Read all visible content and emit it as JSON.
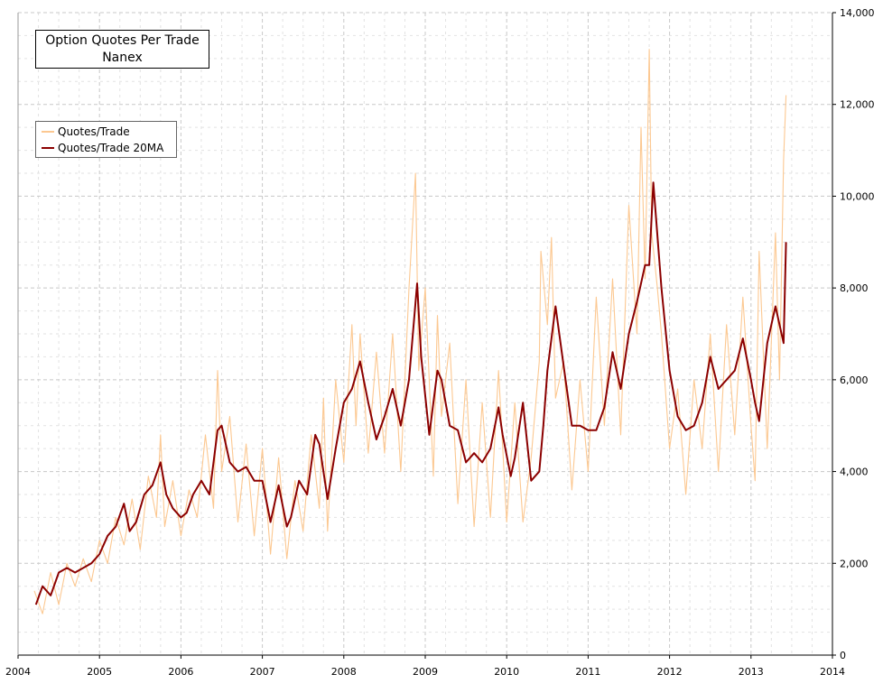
{
  "title_line1": "Option Quotes Per Trade",
  "title_line2": "Nanex",
  "colors": {
    "raw": "#fcc891",
    "ma": "#8b0000",
    "grid": "#c8c8c8",
    "background": "#ffffff"
  },
  "legend": {
    "placement": "top-left",
    "items": [
      {
        "label": "Quotes/Trade",
        "color": "#fcc891"
      },
      {
        "label": "Quotes/Trade 20MA",
        "color": "#8b0000"
      }
    ]
  },
  "chart_data": {
    "type": "line",
    "title": "Option Quotes Per Trade",
    "subtitle": "Nanex",
    "xlim": [
      2004,
      2014
    ],
    "ylim": [
      0,
      14000
    ],
    "x_ticks": [
      "2004",
      "2005",
      "2006",
      "2007",
      "2008",
      "2009",
      "2010",
      "2011",
      "2012",
      "2013",
      "2014"
    ],
    "y_ticks": [
      "0",
      "2,000",
      "4,000",
      "6,000",
      "8,000",
      "10,000",
      "12,000",
      "14,000"
    ],
    "y_axis_side": "right",
    "grid": true,
    "series": [
      {
        "name": "Quotes/Trade 20MA",
        "x": [
          2004.22,
          2004.3,
          2004.4,
          2004.5,
          2004.6,
          2004.7,
          2004.8,
          2004.9,
          2005.0,
          2005.1,
          2005.2,
          2005.3,
          2005.37,
          2005.45,
          2005.55,
          2005.65,
          2005.75,
          2005.82,
          2005.9,
          2006.0,
          2006.07,
          2006.15,
          2006.25,
          2006.35,
          2006.45,
          2006.5,
          2006.6,
          2006.7,
          2006.8,
          2006.9,
          2007.0,
          2007.1,
          2007.2,
          2007.3,
          2007.35,
          2007.45,
          2007.55,
          2007.65,
          2007.7,
          2007.8,
          2007.9,
          2008.0,
          2008.1,
          2008.2,
          2008.3,
          2008.4,
          2008.5,
          2008.6,
          2008.7,
          2008.8,
          2008.9,
          2008.95,
          2009.05,
          2009.15,
          2009.2,
          2009.3,
          2009.4,
          2009.5,
          2009.6,
          2009.7,
          2009.8,
          2009.9,
          2009.95,
          2010.05,
          2010.1,
          2010.2,
          2010.3,
          2010.4,
          2010.45,
          2010.5,
          2010.6,
          2010.7,
          2010.8,
          2010.9,
          2011.0,
          2011.1,
          2011.2,
          2011.3,
          2011.4,
          2011.5,
          2011.6,
          2011.7,
          2011.75,
          2011.8,
          2011.9,
          2012.0,
          2012.1,
          2012.2,
          2012.3,
          2012.4,
          2012.5,
          2012.6,
          2012.7,
          2012.8,
          2012.9,
          2013.0,
          2013.05,
          2013.1,
          2013.2,
          2013.3,
          2013.4,
          2013.43
        ],
        "values": [
          1100,
          1500,
          1300,
          1800,
          1900,
          1800,
          1900,
          2000,
          2200,
          2600,
          2800,
          3300,
          2700,
          2900,
          3500,
          3700,
          4200,
          3500,
          3200,
          3000,
          3100,
          3500,
          3800,
          3500,
          4900,
          5000,
          4200,
          4000,
          4100,
          3800,
          3800,
          2900,
          3700,
          2800,
          3000,
          3800,
          3500,
          4800,
          4600,
          3400,
          4500,
          5500,
          5800,
          6400,
          5500,
          4700,
          5200,
          5800,
          5000,
          6000,
          8100,
          6500,
          4800,
          6200,
          6000,
          5000,
          4900,
          4200,
          4400,
          4200,
          4500,
          5400,
          4800,
          3900,
          4300,
          5500,
          3800,
          4000,
          5000,
          6200,
          7600,
          6300,
          5000,
          5000,
          4900,
          4900,
          5400,
          6600,
          5800,
          7000,
          7700,
          8500,
          8500,
          10300,
          8000,
          6200,
          5200,
          4900,
          5000,
          5500,
          6500,
          5800,
          6000,
          6200,
          6900,
          6000,
          5500,
          5100,
          6800,
          7600,
          6800,
          9000
        ]
      },
      {
        "name": "Quotes/Trade",
        "x": [
          2004.2,
          2004.3,
          2004.4,
          2004.5,
          2004.6,
          2004.7,
          2004.8,
          2004.9,
          2005.0,
          2005.1,
          2005.2,
          2005.3,
          2005.4,
          2005.5,
          2005.6,
          2005.7,
          2005.75,
          2005.8,
          2005.9,
          2006.0,
          2006.1,
          2006.2,
          2006.3,
          2006.4,
          2006.45,
          2006.5,
          2006.6,
          2006.7,
          2006.8,
          2006.9,
          2007.0,
          2007.1,
          2007.2,
          2007.3,
          2007.4,
          2007.5,
          2007.6,
          2007.7,
          2007.75,
          2007.8,
          2007.9,
          2008.0,
          2008.1,
          2008.15,
          2008.2,
          2008.3,
          2008.4,
          2008.5,
          2008.6,
          2008.7,
          2008.8,
          2008.88,
          2008.92,
          2009.0,
          2009.1,
          2009.15,
          2009.2,
          2009.3,
          2009.4,
          2009.5,
          2009.6,
          2009.7,
          2009.8,
          2009.9,
          2010.0,
          2010.1,
          2010.2,
          2010.3,
          2010.4,
          2010.42,
          2010.5,
          2010.55,
          2010.6,
          2010.7,
          2010.8,
          2010.9,
          2011.0,
          2011.1,
          2011.2,
          2011.3,
          2011.4,
          2011.5,
          2011.6,
          2011.65,
          2011.7,
          2011.75,
          2011.78,
          2011.85,
          2011.9,
          2012.0,
          2012.1,
          2012.2,
          2012.3,
          2012.4,
          2012.5,
          2012.6,
          2012.7,
          2012.8,
          2012.9,
          2013.0,
          2013.05,
          2013.1,
          2013.2,
          2013.3,
          2013.35,
          2013.4,
          2013.43
        ],
        "values": [
          1400,
          900,
          1800,
          1100,
          2000,
          1500,
          2100,
          1600,
          2500,
          2000,
          3000,
          2400,
          3400,
          2300,
          3900,
          3000,
          4800,
          2800,
          3800,
          2600,
          3600,
          3000,
          4800,
          3200,
          6200,
          4000,
          5200,
          2900,
          4600,
          2600,
          4500,
          2200,
          4300,
          2100,
          3800,
          2700,
          4800,
          3200,
          5600,
          2700,
          6000,
          4200,
          7200,
          5000,
          7000,
          4400,
          6600,
          4400,
          7000,
          4000,
          8000,
          10500,
          6200,
          8000,
          3900,
          7400,
          5200,
          6800,
          3300,
          6000,
          2800,
          5500,
          3000,
          6200,
          2900,
          5500,
          2900,
          4300,
          6400,
          8800,
          7200,
          9100,
          5600,
          6400,
          3600,
          6000,
          4000,
          7800,
          5000,
          8200,
          4800,
          9800,
          7000,
          11500,
          8200,
          13200,
          9200,
          8000,
          7000,
          4500,
          5800,
          3500,
          6000,
          4500,
          7000,
          4000,
          7200,
          4800,
          7800,
          5000,
          3800,
          8800,
          4500,
          9200,
          6000,
          10800,
          12200
        ]
      }
    ]
  }
}
